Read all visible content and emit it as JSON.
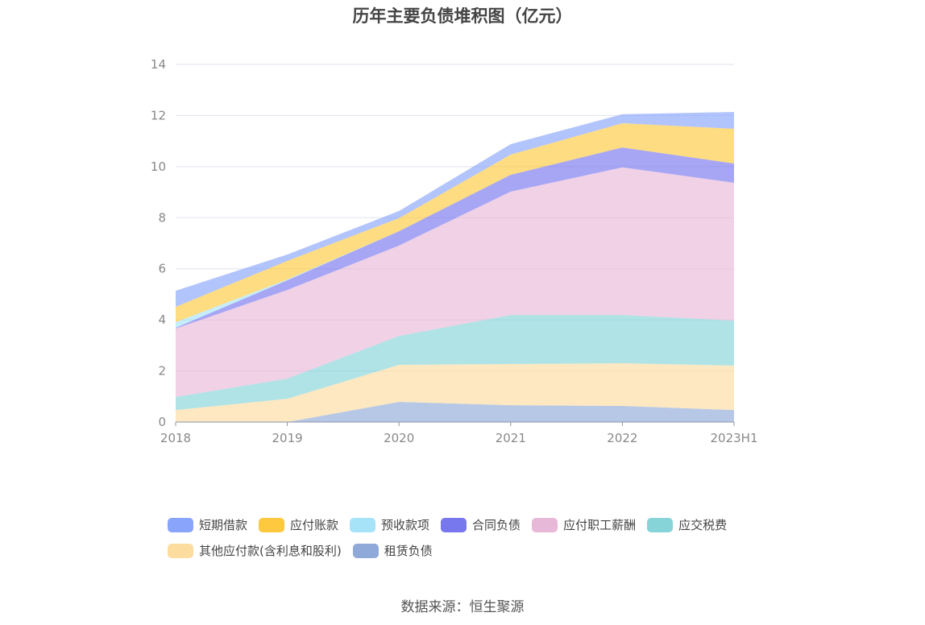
{
  "chart_data": {
    "type": "area",
    "stacked": true,
    "title": "历年主要负债堆积图（亿元）",
    "xlabel": "",
    "ylabel": "",
    "categories": [
      "2018",
      "2019",
      "2020",
      "2021",
      "2022",
      "2023H1"
    ],
    "ylim": [
      0,
      14
    ],
    "yticks": [
      0,
      2,
      4,
      6,
      8,
      10,
      12,
      14
    ],
    "grid": true,
    "legend_position": "bottom",
    "series": [
      {
        "name": "短期借款",
        "color": "#88a4fb",
        "values": [
          0.63,
          0.25,
          0.28,
          0.41,
          0.35,
          0.66
        ]
      },
      {
        "name": "应付账款",
        "color": "#fec93e",
        "values": [
          0.6,
          0.73,
          0.51,
          0.79,
          0.95,
          1.36
        ]
      },
      {
        "name": "预收款项",
        "color": "#a6e3f9",
        "values": [
          0.22,
          0.03,
          0,
          0,
          0,
          0
        ]
      },
      {
        "name": "合同负债",
        "color": "#7777ee",
        "values": [
          0.03,
          0.38,
          0.56,
          0.66,
          0.78,
          0.75
        ]
      },
      {
        "name": "应付职工薪酬",
        "color": "#e8b8d8",
        "values": [
          2.68,
          3.47,
          3.54,
          4.83,
          5.78,
          5.4
        ]
      },
      {
        "name": "应交税费",
        "color": "#86d4d8",
        "values": [
          0.51,
          0.79,
          1.13,
          1.92,
          1.89,
          1.76
        ]
      },
      {
        "name": "其他应付款(含利息和股利)",
        "color": "#fddca0",
        "values": [
          0.47,
          0.91,
          1.45,
          1.61,
          1.67,
          1.74
        ]
      },
      {
        "name": "租赁负债",
        "color": "#8faad8",
        "values": [
          0,
          0,
          0.79,
          0.66,
          0.63,
          0.47
        ]
      }
    ]
  },
  "source": "数据来源：恒生聚源"
}
